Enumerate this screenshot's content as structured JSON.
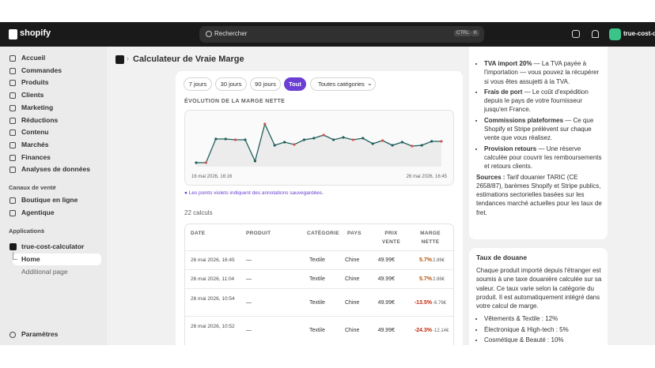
{
  "header": {
    "logo": "shopify",
    "search": "Rechercher",
    "shortcut": [
      "CTRL",
      "K"
    ],
    "store": "true-cost-de"
  },
  "nav": {
    "main": [
      "Accueil",
      "Commandes",
      "Produits",
      "Clients",
      "Marketing",
      "Réductions",
      "Contenu",
      "Marchés",
      "Finances",
      "Analyses de données"
    ],
    "sales_channels_title": "Canaux de vente",
    "sales_channels": [
      "Boutique en ligne",
      "Agentique"
    ],
    "apps_title": "Applications",
    "app": "true-cost-calculator",
    "app_pages": [
      "Home",
      "Additional page"
    ],
    "settings": "Paramètres"
  },
  "page": {
    "title": "Calculateur de Vraie Marge"
  },
  "filters": {
    "periods": [
      "7 jours",
      "30 jours",
      "90 jours",
      "Tout"
    ],
    "category": "Toutes catégories"
  },
  "chart_data": {
    "type": "line",
    "title": "ÉVOLUTION DE LA MARGE NETTE",
    "x_start": "16 mai 2026, 16:16",
    "x_end": "26 mai 2026, 16:45",
    "values": [
      5,
      5,
      35,
      35,
      34,
      34,
      7,
      54,
      27,
      31,
      28,
      34,
      36,
      40,
      34,
      37,
      34,
      36,
      29,
      33,
      27,
      31,
      26,
      27,
      32,
      32
    ],
    "ylim": [
      0,
      60
    ],
    "color": "#1f5f5b"
  },
  "note": "● Les points violets indiquent des annotations sauvegardées.",
  "count": "22 calculs",
  "table": {
    "columns": [
      "DATE",
      "PRODUIT",
      "CATÉGORIE",
      "PAYS",
      "PRIX VENTE",
      "MARGE NETTE"
    ],
    "rows": [
      [
        "26 mai 2026, 16:45",
        "—",
        "Textile",
        "Chine",
        "49.99€",
        "5.7%",
        "2.86€"
      ],
      [
        "26 mai 2026, 11:04",
        "—",
        "Textile",
        "Chine",
        "49.99€",
        "5.7%",
        "2.86€"
      ],
      [
        "26 mai 2026, 10:54",
        "—",
        "Textile",
        "Chine",
        "49.99€",
        "-13.5%",
        "-6.76€"
      ],
      [
        "26 mai 2026, 10:52",
        "—",
        "Textile",
        "Chine",
        "49.99€",
        "-24.3%",
        "-12.14€"
      ]
    ]
  },
  "info": {
    "bullets": [
      {
        "term": "TVA import 20%",
        "text": " — La TVA payée à l'importation — vous pouvez la récupérer si vous êtes assujetti à la TVA."
      },
      {
        "term": "Frais de port",
        "text": " — Le coût d'expédition depuis le pays de votre fournisseur jusqu'en France."
      },
      {
        "term": "Commissions plateformes",
        "text": " — Ce que Shopify et Stripe prélèvent sur chaque vente que vous réalisez."
      },
      {
        "term": "Provision retours",
        "text": " — Une réserve calculée pour couvrir les remboursements et retours clients."
      }
    ],
    "sources_label": "Sources :",
    "sources": " Tarif douanier TARIC (CE 2658/87), barèmes Shopify et Stripe publics, estimations sectorielles basées sur les tendances marché actuelles pour les taux de fret.",
    "customs": {
      "title": "Taux de douane",
      "text": "Chaque produit importé depuis l'étranger est soumis à une taxe douanière calculée sur sa valeur. Ce taux varie selon la catégorie du produit. Il est automatiquement intégré dans votre calcul de marge.",
      "rates": [
        "Vêtements & Textile : 12%",
        "Électronique & High-tech : 5%",
        "Cosmétique & Beauté : 10%"
      ]
    }
  }
}
